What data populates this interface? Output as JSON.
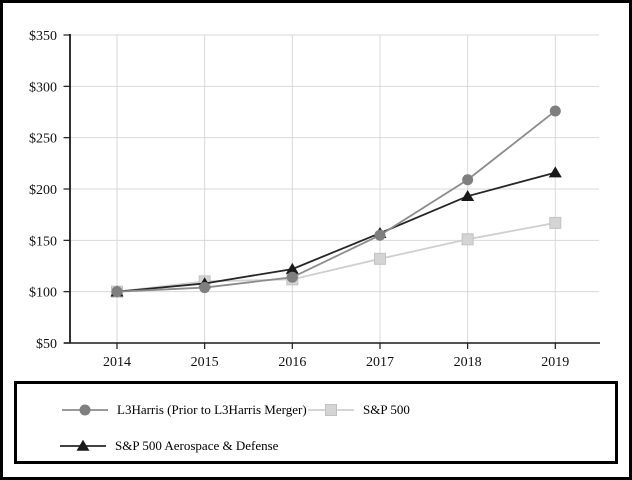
{
  "chart_data": {
    "type": "line",
    "title": "",
    "xlabel": "",
    "ylabel": "",
    "x": [
      2014,
      2015,
      2016,
      2017,
      2018,
      2019
    ],
    "xtick_labels": [
      "2014",
      "2015",
      "2016",
      "2017",
      "2018",
      "2019"
    ],
    "ytick_labels": [
      "$50",
      "$100",
      "$150",
      "$200",
      "$250",
      "$300",
      "$350"
    ],
    "ylim": [
      50,
      350
    ],
    "ytick_step": 50,
    "grid": true,
    "grid_color": "#d9d9d9",
    "axis_color": "#1a1a1a",
    "legend_position": "bottom-box",
    "series": [
      {
        "name": "L3Harris (Prior to L3Harris Merger)",
        "marker": "circle",
        "marker_color": "#7f7f7f",
        "line_color": "#8c8c8c",
        "z": 2,
        "values": [
          100,
          104,
          114,
          155,
          209,
          276
        ]
      },
      {
        "name": "S&P 500",
        "marker": "square",
        "marker_color": "#d4d4d4",
        "marker_stroke": "#c2c2c2",
        "line_color": "#cfcfcf",
        "z": 0,
        "values": [
          100,
          110,
          112,
          132,
          151,
          167
        ]
      },
      {
        "name": "S&P 500 Aerospace & Defense",
        "marker": "triangle",
        "marker_color": "#1a1a1a",
        "line_color": "#262626",
        "z": 1,
        "values": [
          100,
          108,
          122,
          157,
          193,
          216
        ]
      }
    ]
  }
}
